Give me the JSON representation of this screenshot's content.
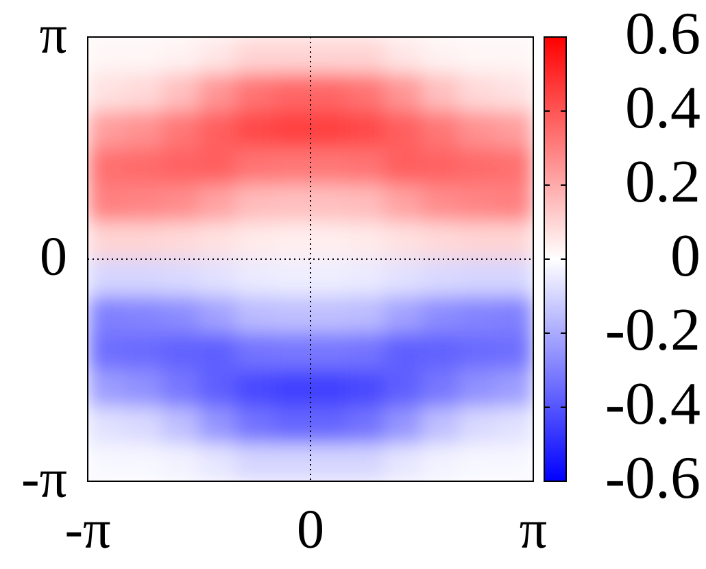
{
  "chart_data": {
    "type": "heatmap",
    "x": [
      -2.88,
      -2.36,
      -1.83,
      -1.31,
      -0.79,
      -0.26,
      0.26,
      0.79,
      1.31,
      1.83,
      2.36,
      2.88
    ],
    "y": [
      2.88,
      2.36,
      1.83,
      1.31,
      0.79,
      0.26,
      -0.26,
      -0.79,
      -1.31,
      -1.83,
      -2.36,
      -2.88
    ],
    "z": [
      [
        0.02,
        0.02,
        0.03,
        0.06,
        0.1,
        0.1,
        0.1,
        0.1,
        0.06,
        0.03,
        0.02,
        0.02
      ],
      [
        0.07,
        0.09,
        0.15,
        0.25,
        0.33,
        0.36,
        0.36,
        0.33,
        0.25,
        0.15,
        0.09,
        0.07
      ],
      [
        0.23,
        0.26,
        0.32,
        0.38,
        0.43,
        0.45,
        0.45,
        0.43,
        0.38,
        0.32,
        0.26,
        0.23
      ],
      [
        0.34,
        0.35,
        0.37,
        0.38,
        0.33,
        0.32,
        0.32,
        0.33,
        0.38,
        0.37,
        0.35,
        0.34
      ],
      [
        0.3,
        0.29,
        0.27,
        0.22,
        0.16,
        0.15,
        0.15,
        0.16,
        0.22,
        0.27,
        0.29,
        0.3
      ],
      [
        0.1,
        0.1,
        0.09,
        0.07,
        0.05,
        0.04,
        0.04,
        0.05,
        0.07,
        0.09,
        0.1,
        0.1
      ],
      [
        -0.1,
        -0.1,
        -0.09,
        -0.07,
        -0.05,
        -0.04,
        -0.04,
        -0.05,
        -0.07,
        -0.09,
        -0.1,
        -0.1
      ],
      [
        -0.3,
        -0.29,
        -0.27,
        -0.22,
        -0.16,
        -0.15,
        -0.15,
        -0.16,
        -0.22,
        -0.27,
        -0.29,
        -0.3
      ],
      [
        -0.34,
        -0.35,
        -0.37,
        -0.38,
        -0.33,
        -0.32,
        -0.32,
        -0.33,
        -0.38,
        -0.37,
        -0.35,
        -0.34
      ],
      [
        -0.23,
        -0.26,
        -0.32,
        -0.38,
        -0.43,
        -0.45,
        -0.45,
        -0.43,
        -0.38,
        -0.32,
        -0.26,
        -0.23
      ],
      [
        -0.07,
        -0.09,
        -0.15,
        -0.25,
        -0.33,
        -0.36,
        -0.36,
        -0.33,
        -0.25,
        -0.15,
        -0.09,
        -0.07
      ],
      [
        -0.02,
        -0.02,
        -0.03,
        -0.06,
        -0.1,
        -0.1,
        -0.1,
        -0.1,
        -0.06,
        -0.03,
        -0.02,
        -0.02
      ]
    ],
    "xlim": [
      -3.1416,
      3.1416
    ],
    "xticks": [
      {
        "value": -3.1416,
        "label": "-π"
      },
      0,
      {
        "value": 3.1416,
        "label": "π"
      }
    ],
    "ylim": [
      -3.1416,
      3.1416
    ],
    "yticks": [
      {
        "value": -3.1416,
        "label": "-π"
      },
      0,
      {
        "value": 3.1416,
        "label": "π"
      }
    ],
    "zlim": [
      -0.6,
      0.6
    ],
    "zticks": [
      -0.6,
      -0.4,
      -0.2,
      0,
      0.2,
      0.4,
      0.6
    ],
    "colormap": [
      "#0000ff",
      "#ffffff",
      "#ff0000"
    ]
  }
}
